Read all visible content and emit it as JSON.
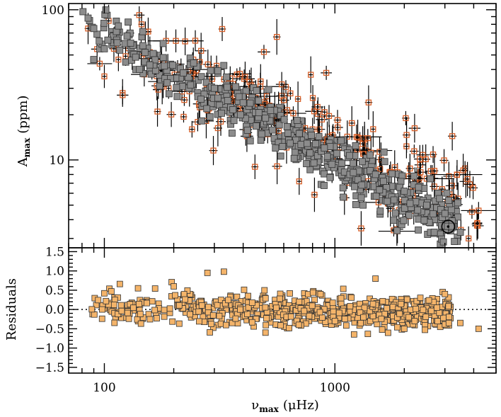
{
  "chart_data": [
    {
      "type": "scatter",
      "panel": "top",
      "xscale": "log",
      "yscale": "log",
      "xlim": [
        70,
        5000
      ],
      "ylim": [
        2.6,
        110
      ],
      "xlabel": {
        "symbol": "ν",
        "sub": "max",
        "unit": "(μHz)"
      },
      "ylabel": {
        "symbol": "A",
        "sub": "max",
        "unit": "(ppm)"
      },
      "x_tick_labels": [
        {
          "value": 100,
          "label": "100"
        },
        {
          "value": 1000,
          "label": "1000"
        }
      ],
      "y_tick_labels": [
        {
          "value": 10,
          "label": "10"
        },
        {
          "value": 100,
          "label": "100"
        }
      ],
      "series": [
        {
          "name": "gray_filled_squares",
          "marker": "filled-square",
          "color": "#8c8c8c",
          "trend": {
            "x0": 80,
            "y0": 85,
            "x1": 3500,
            "y1": 3.3,
            "log_scatter": 0.12
          },
          "points": [
            [
              85,
              88
            ],
            [
              90,
              75
            ],
            [
              95,
              62
            ],
            [
              100,
              55
            ],
            [
              115,
              78
            ],
            [
              130,
              60
            ],
            [
              150,
              52
            ],
            [
              180,
              48
            ],
            [
              220,
              38
            ],
            [
              300,
              30
            ],
            [
              400,
              24
            ],
            [
              500,
              19
            ],
            [
              700,
              15
            ],
            [
              900,
              12
            ],
            [
              1200,
              9.5
            ],
            [
              1500,
              8
            ],
            [
              2000,
              6.2
            ],
            [
              2500,
              5.0
            ],
            [
              3000,
              4.4
            ],
            [
              3500,
              3.3
            ]
          ]
        },
        {
          "name": "orange_open_squares_with_errors",
          "marker": "open-square",
          "color": "#d9622b",
          "trend": {
            "x0": 85,
            "y0": 75,
            "x1": 4200,
            "y1": 4.5,
            "log_scatter": 0.2
          },
          "points": [
            [
              85,
              75
            ],
            [
              100,
              36
            ],
            [
              110,
              55
            ],
            [
              120,
              27
            ],
            [
              145,
              80
            ],
            [
              170,
              21
            ],
            [
              190,
              30
            ],
            [
              215,
              40
            ],
            [
              240,
              16
            ],
            [
              300,
              28
            ],
            [
              320,
              18
            ],
            [
              380,
              27
            ],
            [
              450,
              9
            ],
            [
              520,
              23
            ],
            [
              600,
              25
            ],
            [
              700,
              7.2
            ],
            [
              800,
              16
            ],
            [
              1100,
              5.6
            ],
            [
              1300,
              3.5
            ],
            [
              1800,
              3.4
            ],
            [
              2500,
              7.5
            ],
            [
              3800,
              3
            ],
            [
              4200,
              4.6
            ]
          ]
        }
      ],
      "special_points": [
        {
          "name": "sun",
          "x": 3100,
          "y": 3.6,
          "marker": "circled-dot",
          "color": "#000000"
        }
      ]
    },
    {
      "type": "scatter",
      "panel": "bottom",
      "xscale": "log",
      "yscale": "linear",
      "xlim": [
        70,
        5000
      ],
      "ylim": [
        -1.65,
        1.6
      ],
      "ylabel": "Residuals",
      "y_tick_labels": [
        {
          "value": 1.5,
          "label": "1.5"
        },
        {
          "value": 1.0,
          "label": "1.0"
        },
        {
          "value": 0.5,
          "label": "0.5"
        },
        {
          "value": 0.0,
          "label": "0.0"
        },
        {
          "value": -0.5,
          "label": "−0.5"
        },
        {
          "value": -1.0,
          "label": "−1.0"
        },
        {
          "value": -1.5,
          "label": "−1.5"
        }
      ],
      "reference_line": {
        "y": 0,
        "style": "dotted"
      },
      "series": [
        {
          "name": "residuals",
          "marker": "filled-square",
          "color": "#f4b46a",
          "spread": 0.28,
          "points": [
            [
              100,
              0.42
            ],
            [
              140,
              0.55
            ],
            [
              200,
              0.6
            ],
            [
              280,
              0.95
            ],
            [
              330,
              0.98
            ],
            [
              420,
              0.35
            ],
            [
              500,
              -0.6
            ],
            [
              700,
              0.2
            ],
            [
              1000,
              -0.3
            ],
            [
              1500,
              0.8
            ],
            [
              2000,
              -0.5
            ],
            [
              3000,
              0.4
            ],
            [
              3500,
              -0.35
            ],
            [
              4200,
              -0.5
            ]
          ]
        }
      ]
    }
  ]
}
